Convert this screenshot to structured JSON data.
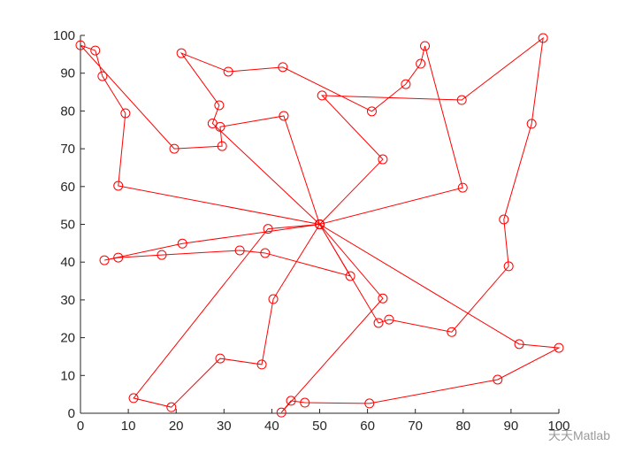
{
  "chart_data": {
    "type": "line",
    "xlim": [
      0,
      100
    ],
    "ylim": [
      0,
      100
    ],
    "xticks": [
      0,
      10,
      20,
      30,
      40,
      50,
      60,
      70,
      80,
      90,
      100
    ],
    "yticks": [
      0,
      10,
      20,
      30,
      40,
      50,
      60,
      70,
      80,
      90,
      100
    ],
    "grid": false,
    "series": [
      {
        "color": "#ff0000",
        "marker": "circle",
        "x": [
          50,
          7.9,
          9.4,
          4.6,
          3.1,
          0,
          19.6,
          29.6,
          29.2,
          42.5,
          50,
          27.6,
          29,
          21.1,
          30.9,
          42.3,
          60.9,
          68,
          71.1,
          72,
          79.9,
          50,
          63.2,
          50.5,
          79.7,
          96.7,
          94.3,
          88.5,
          89.5,
          77.6,
          64.5,
          62.3,
          50,
          63.2,
          42,
          44,
          46.9,
          60.4,
          87.2,
          100,
          91.7,
          50,
          56.4,
          38.6,
          33.3,
          17,
          7.9,
          5,
          21.3,
          50,
          39.2,
          11.1,
          19,
          29.2,
          37.9,
          40.3,
          50
        ],
        "values": [
          50,
          60.2,
          79.4,
          89.2,
          96,
          97.4,
          70,
          70.7,
          75.8,
          78.7,
          50,
          76.7,
          81.5,
          95.3,
          90.4,
          91.6,
          79.9,
          87.1,
          92.5,
          97.2,
          59.7,
          50,
          67.2,
          84.1,
          82.9,
          99.3,
          76.6,
          51.3,
          38.9,
          21.5,
          24.8,
          23.9,
          50,
          30.4,
          0.2,
          3.3,
          2.8,
          2.6,
          8.9,
          17.3,
          18.3,
          50,
          36.3,
          42.4,
          43.1,
          41.9,
          41.2,
          40.5,
          44.9,
          50,
          48.8,
          4,
          1.6,
          14.5,
          12.9,
          30.2,
          50
        ]
      }
    ],
    "watermark": "天天Matlab"
  }
}
